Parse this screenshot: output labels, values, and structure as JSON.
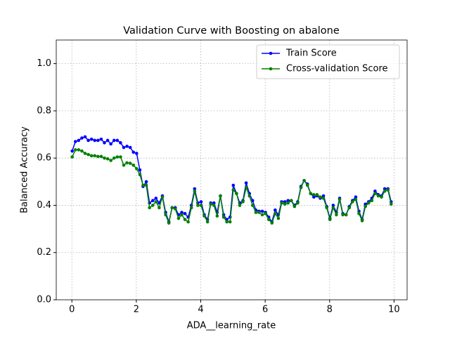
{
  "chart_data": {
    "type": "line",
    "title": "Validation Curve with Boosting on abalone",
    "x_label": "ADA__learning_rate",
    "y_label": "Balanced Accuracy",
    "x": [
      0.01,
      0.11,
      0.21,
      0.31,
      0.41,
      0.51,
      0.61,
      0.71,
      0.81,
      0.91,
      1.01,
      1.11,
      1.21,
      1.31,
      1.41,
      1.51,
      1.61,
      1.71,
      1.81,
      1.91,
      2.01,
      2.11,
      2.21,
      2.31,
      2.41,
      2.51,
      2.61,
      2.71,
      2.81,
      2.91,
      3.01,
      3.11,
      3.21,
      3.31,
      3.41,
      3.51,
      3.61,
      3.71,
      3.81,
      3.91,
      4.01,
      4.11,
      4.21,
      4.31,
      4.41,
      4.51,
      4.61,
      4.71,
      4.81,
      4.91,
      5.01,
      5.11,
      5.21,
      5.31,
      5.41,
      5.51,
      5.61,
      5.71,
      5.81,
      5.91,
      6.01,
      6.11,
      6.21,
      6.31,
      6.41,
      6.51,
      6.61,
      6.71,
      6.81,
      6.91,
      7.01,
      7.11,
      7.21,
      7.31,
      7.41,
      7.51,
      7.61,
      7.71,
      7.81,
      7.91,
      8.01,
      8.11,
      8.21,
      8.31,
      8.41,
      8.51,
      8.61,
      8.71,
      8.81,
      8.91,
      9.01,
      9.11,
      9.21,
      9.31,
      9.41,
      9.51,
      9.61,
      9.71,
      9.81,
      9.91
    ],
    "series": [
      {
        "name": "Train Score",
        "color": "#0000ff",
        "values": [
          0.63,
          0.67,
          0.675,
          0.685,
          0.69,
          0.675,
          0.68,
          0.675,
          0.675,
          0.68,
          0.665,
          0.675,
          0.66,
          0.675,
          0.675,
          0.665,
          0.645,
          0.65,
          0.645,
          0.625,
          0.62,
          0.55,
          0.48,
          0.5,
          0.41,
          0.42,
          0.43,
          0.41,
          0.44,
          0.37,
          0.33,
          0.39,
          0.39,
          0.36,
          0.37,
          0.365,
          0.35,
          0.4,
          0.47,
          0.41,
          0.415,
          0.36,
          0.34,
          0.41,
          0.41,
          0.37,
          0.44,
          0.36,
          0.34,
          0.35,
          0.485,
          0.45,
          0.41,
          0.42,
          0.495,
          0.45,
          0.42,
          0.38,
          0.375,
          0.375,
          0.37,
          0.35,
          0.33,
          0.38,
          0.36,
          0.415,
          0.415,
          0.42,
          0.42,
          0.4,
          0.415,
          0.48,
          0.505,
          0.49,
          0.45,
          0.435,
          0.44,
          0.43,
          0.44,
          0.395,
          0.345,
          0.4,
          0.37,
          0.43,
          0.365,
          0.36,
          0.395,
          0.42,
          0.435,
          0.375,
          0.34,
          0.405,
          0.415,
          0.43,
          0.46,
          0.445,
          0.44,
          0.47,
          0.47,
          0.415
        ]
      },
      {
        "name": "Cross-validation Score",
        "color": "#008000",
        "values": [
          0.605,
          0.635,
          0.635,
          0.63,
          0.62,
          0.615,
          0.61,
          0.61,
          0.607,
          0.607,
          0.6,
          0.597,
          0.59,
          0.6,
          0.605,
          0.605,
          0.57,
          0.58,
          0.578,
          0.57,
          0.555,
          0.53,
          0.485,
          0.485,
          0.39,
          0.4,
          0.415,
          0.39,
          0.435,
          0.36,
          0.325,
          0.39,
          0.385,
          0.345,
          0.36,
          0.34,
          0.33,
          0.39,
          0.46,
          0.4,
          0.4,
          0.355,
          0.33,
          0.405,
          0.4,
          0.355,
          0.44,
          0.35,
          0.33,
          0.33,
          0.465,
          0.45,
          0.4,
          0.415,
          0.475,
          0.44,
          0.4,
          0.37,
          0.37,
          0.36,
          0.365,
          0.34,
          0.325,
          0.365,
          0.345,
          0.41,
          0.405,
          0.41,
          0.42,
          0.395,
          0.41,
          0.475,
          0.505,
          0.485,
          0.45,
          0.445,
          0.445,
          0.435,
          0.43,
          0.39,
          0.34,
          0.39,
          0.36,
          0.425,
          0.36,
          0.36,
          0.39,
          0.415,
          0.425,
          0.365,
          0.335,
          0.395,
          0.41,
          0.42,
          0.45,
          0.44,
          0.435,
          0.46,
          0.465,
          0.405
        ]
      }
    ],
    "xlim": [
      -0.485,
      10.405
    ],
    "ylim": [
      0,
      1.1
    ],
    "xticks": [
      0,
      2,
      4,
      6,
      8,
      10
    ],
    "yticks": [
      {
        "value": 0,
        "label": "0.0"
      },
      {
        "value": 0.2,
        "label": "0.2"
      },
      {
        "value": 0.4,
        "label": "0.4"
      },
      {
        "value": 0.6,
        "label": "0.6"
      },
      {
        "value": 0.8,
        "label": "0.8"
      },
      {
        "value": 1.0,
        "label": "1.0"
      }
    ],
    "grid": true,
    "legend": "upper right"
  }
}
